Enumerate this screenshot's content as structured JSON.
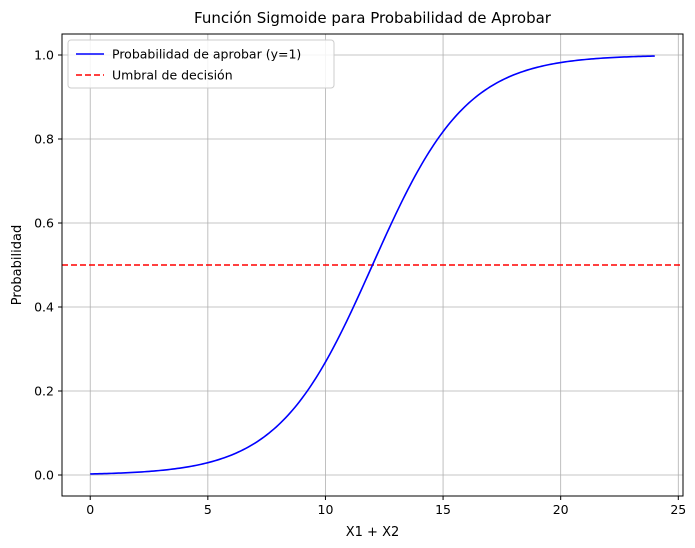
{
  "chart_data": {
    "type": "line",
    "title": "Función Sigmoide para Probabilidad de Aprobar",
    "xlabel": "X1 + X2",
    "ylabel": "Probabilidad",
    "xlim": [
      -1.2,
      25.2
    ],
    "ylim": [
      -0.05,
      1.05
    ],
    "x_ticks": [
      0,
      5,
      10,
      15,
      20,
      25
    ],
    "y_ticks": [
      0.0,
      0.2,
      0.4,
      0.6,
      0.8,
      1.0
    ],
    "x_tick_labels": [
      "0",
      "5",
      "10",
      "15",
      "20",
      "25"
    ],
    "y_tick_labels": [
      "0.0",
      "0.2",
      "0.4",
      "0.6",
      "0.8",
      "1.0"
    ],
    "grid": true,
    "legend_position": "top-left",
    "series": [
      {
        "name": "Probabilidad de aprobar (y=1)",
        "color": "#0000ff",
        "style": "solid",
        "x": [
          0,
          1,
          2,
          3,
          4,
          5,
          6,
          7,
          8,
          9,
          10,
          11,
          12,
          13,
          14,
          15,
          16,
          17,
          18,
          19,
          20,
          21,
          22,
          23,
          24
        ],
        "y": [
          0.002,
          0.004,
          0.006,
          0.009,
          0.015,
          0.029,
          0.047,
          0.076,
          0.119,
          0.182,
          0.269,
          0.378,
          0.5,
          0.622,
          0.731,
          0.818,
          0.881,
          0.924,
          0.953,
          0.971,
          0.982,
          0.989,
          0.993,
          0.996,
          0.997
        ]
      }
    ],
    "reference_lines": [
      {
        "name": "Umbral de decisión",
        "color": "#ff0000",
        "style": "dashed",
        "y": 0.5
      }
    ]
  }
}
